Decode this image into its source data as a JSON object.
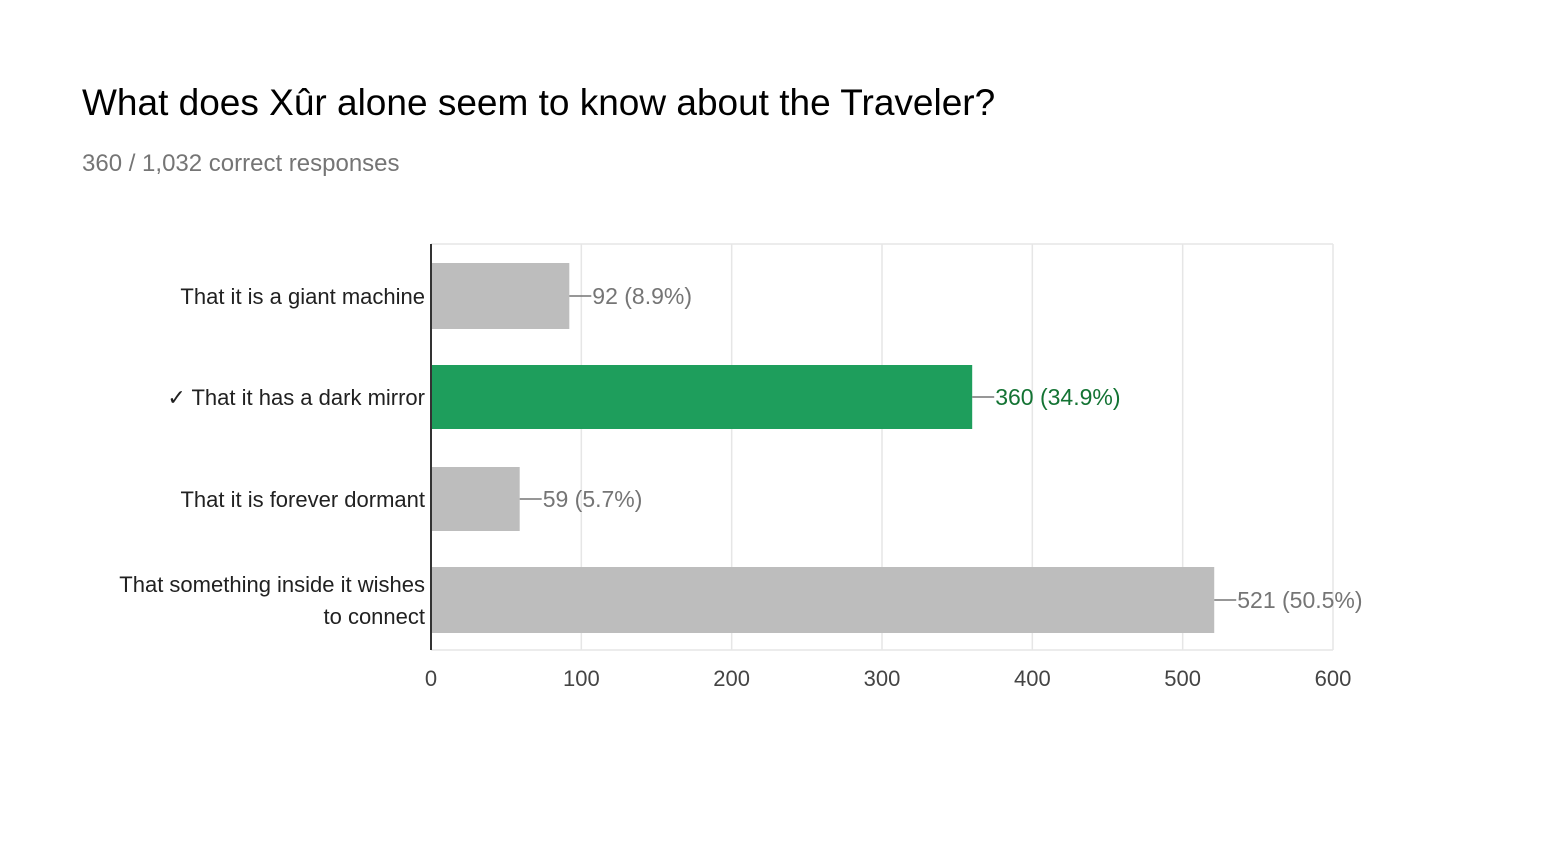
{
  "header": {
    "title": "What does Xûr alone seem to know about the Traveler?",
    "subtitle": "360 / 1,032 correct responses"
  },
  "colors": {
    "correct_bar": "#1e9e5c",
    "correct_label": "#137333",
    "other_bar": "#bdbdbd",
    "other_label": "#757575",
    "category_text": "#212121",
    "grid": "#e6e6e6",
    "axis": "#333333"
  },
  "chart_data": {
    "type": "bar",
    "orientation": "horizontal",
    "categories": [
      "That it is a giant machine",
      "✓ That it has a dark mirror",
      "That it is forever dormant",
      "That something inside it wishes to connect"
    ],
    "category_lines": [
      [
        "That it is a giant machine"
      ],
      [
        "✓ That it has a dark mirror"
      ],
      [
        "That it is forever dormant"
      ],
      [
        "That something inside it wishes",
        "to connect"
      ]
    ],
    "values": [
      92,
      360,
      59,
      521
    ],
    "percentages": [
      "8.9%",
      "34.9%",
      "5.7%",
      "50.5%"
    ],
    "data_labels": [
      "92 (8.9%)",
      "360 (34.9%)",
      "59 (5.7%)",
      "521 (50.5%)"
    ],
    "correct_index": 1,
    "xlim": [
      0,
      600
    ],
    "xticks": [
      0,
      100,
      200,
      300,
      400,
      500,
      600
    ],
    "xtick_labels": [
      "0",
      "100",
      "200",
      "300",
      "400",
      "500",
      "600"
    ],
    "grid": true,
    "legend": "none"
  }
}
